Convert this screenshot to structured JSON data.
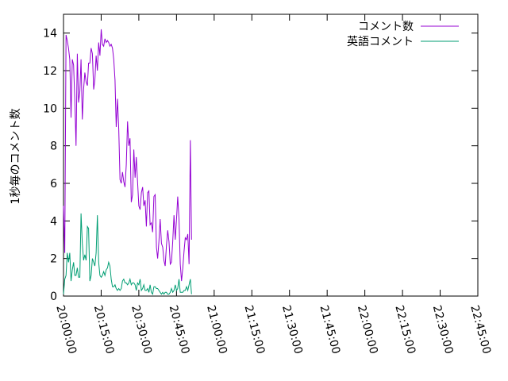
{
  "chart_data": {
    "type": "line",
    "title": "",
    "xlabel": "",
    "ylabel": "1秒毎のコメント数",
    "x_start": "20:00:00",
    "x_step_minutes": 0.5,
    "x_ticks": [
      "20:00:00",
      "20:15:00",
      "20:30:00",
      "20:45:00",
      "21:00:00",
      "21:15:00",
      "21:30:00",
      "21:45:00",
      "22:00:00",
      "22:15:00",
      "22:30:00",
      "22:45:00"
    ],
    "xlim": [
      "20:00:00",
      "22:45:00"
    ],
    "ylim": [
      0,
      15
    ],
    "y_ticks": [
      0,
      2,
      4,
      6,
      8,
      10,
      12,
      14
    ],
    "grid": false,
    "legend": "top-right",
    "series": [
      {
        "name": "コメント数",
        "color": "#9400d3",
        "values": [
          4.8,
          2.3,
          13.9,
          13.6,
          13.2,
          12.6,
          9.5,
          12.6,
          12.3,
          10.5,
          8.0,
          12.9,
          10.3,
          10.9,
          12.6,
          9.4,
          11.0,
          11.9,
          11.4,
          11.2,
          12.4,
          12.4,
          13.2,
          12.9,
          11.0,
          11.5,
          12.8,
          12.0,
          13.5,
          12.8,
          14.2,
          13.4,
          13.3,
          13.7,
          13.5,
          13.6,
          13.5,
          13.3,
          13.4,
          13.2,
          12.6,
          11.5,
          9.0,
          10.5,
          8.9,
          6.2,
          6.0,
          6.6,
          6.1,
          5.8,
          7.0,
          9.3,
          8.0,
          8.4,
          5.0,
          5.4,
          7.8,
          6.3,
          7.4,
          6.1,
          4.8,
          4.6,
          5.5,
          5.8,
          4.8,
          5.1,
          3.7,
          5.5,
          5.6,
          3.8,
          3.9,
          3.4,
          5.3,
          5.4,
          2.6,
          2.0,
          2.9,
          4.1,
          2.8,
          2.6,
          1.9,
          1.6,
          2.7,
          3.5,
          2.9,
          1.7,
          1.8,
          2.9,
          4.3,
          3.0,
          4.1,
          5.3,
          4.1,
          1.7,
          0.8,
          1.5,
          2.4,
          3.1,
          3.0,
          3.3,
          1.7,
          8.3,
          3.0
        ]
      },
      {
        "name": "英語コメント",
        "color": "#009e73",
        "values": [
          0.1,
          0.9,
          1.1,
          2.3,
          1.8,
          2.3,
          0.8,
          1.4,
          1.8,
          1.1,
          1.1,
          1.5,
          1.0,
          1.0,
          4.4,
          2.8,
          1.9,
          2.2,
          1.9,
          3.7,
          3.6,
          0.8,
          1.1,
          2.0,
          1.8,
          1.6,
          2.3,
          4.3,
          1.8,
          1.1,
          1.0,
          1.1,
          1.3,
          1.1,
          1.4,
          1.5,
          1.8,
          1.6,
          0.9,
          0.5,
          0.5,
          0.6,
          0.4,
          0.3,
          0.4,
          0.3,
          0.4,
          0.8,
          0.9,
          0.7,
          0.7,
          0.6,
          0.7,
          0.9,
          0.6,
          0.7,
          0.7,
          0.6,
          0.3,
          0.7,
          0.6,
          0.9,
          0.3,
          0.4,
          0.6,
          0.3,
          0.3,
          0.4,
          0.2,
          0.6,
          0.2,
          0.1,
          0.5,
          0.5,
          0.4,
          0.4,
          0.3,
          0.2,
          0.1,
          0.2,
          0.1,
          0.2,
          0.2,
          0.1,
          0.1,
          0.2,
          0.4,
          0.2,
          0.3,
          0.6,
          0.3,
          0.4,
          0.9,
          0.2,
          0.2,
          0.2,
          0.3,
          0.3,
          0.5,
          0.3,
          0.6,
          0.9,
          0.1
        ]
      }
    ]
  }
}
